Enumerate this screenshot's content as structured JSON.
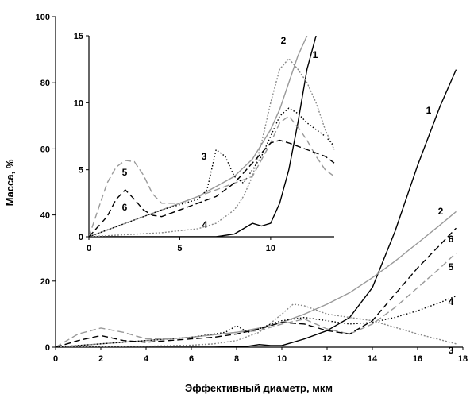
{
  "chart_data": [
    {
      "type": "line",
      "xlabel": "Эффективный диаметр, мкм",
      "ylabel": "Масса, %",
      "xlim": [
        0,
        18
      ],
      "ylim": [
        0,
        100
      ],
      "x_ticks": [
        "0",
        "2",
        "4",
        "6",
        "8",
        "10",
        "12",
        "14",
        "16",
        "18"
      ],
      "y_ticks": [
        "0",
        "20",
        "40",
        "60",
        "80",
        "100"
      ],
      "series": [
        {
          "name": "1",
          "color": "#000000",
          "dash": "solid",
          "x": [
            0,
            7,
            8.5,
            9,
            9.5,
            10,
            10.5,
            11,
            12,
            13,
            14,
            15,
            16,
            17,
            17.7
          ],
          "y": [
            0,
            0,
            0.3,
            0.8,
            0.5,
            0.5,
            1.5,
            2.5,
            5,
            9,
            18,
            35,
            55,
            73,
            84
          ]
        },
        {
          "name": "2",
          "color": "#999999",
          "dash": "solid",
          "x": [
            0,
            2,
            4,
            6,
            8,
            9,
            10,
            11,
            12,
            13,
            14,
            15,
            16,
            17,
            17.7
          ],
          "y": [
            0,
            1,
            2,
            3,
            4.5,
            5.8,
            7.5,
            10,
            13,
            16.5,
            21,
            26,
            31.5,
            37,
            41
          ]
        },
        {
          "name": "3",
          "color": "#888888",
          "dash": "2,2",
          "x": [
            0,
            4,
            6,
            7,
            8,
            9,
            10,
            10.5,
            11,
            12,
            13,
            14,
            15,
            16,
            17.7
          ],
          "y": [
            0,
            0.3,
            0.6,
            1,
            2,
            4.5,
            10,
            13,
            12.5,
            10,
            9,
            8,
            6,
            4,
            1
          ]
        },
        {
          "name": "4",
          "color": "#000000",
          "dash": "1.5,2.5",
          "x": [
            0,
            2,
            4,
            6,
            7.5,
            8,
            8.5,
            9,
            9.5,
            10,
            11,
            12,
            13,
            14,
            15,
            16,
            17,
            17.7
          ],
          "y": [
            0,
            1,
            2,
            3,
            4.5,
            6.5,
            4.5,
            5.5,
            7,
            8,
            9,
            8,
            7,
            7.5,
            9,
            11,
            13.5,
            15.5
          ]
        },
        {
          "name": "5",
          "color": "#999999",
          "dash": "8,4",
          "x": [
            0,
            1,
            2,
            3,
            4,
            5,
            6,
            7,
            8,
            9,
            10,
            11,
            12,
            13,
            14,
            15,
            16,
            17,
            17.7
          ],
          "y": [
            0,
            4,
            5.8,
            4.5,
            2.5,
            2.5,
            3,
            3.8,
            4.5,
            5,
            7,
            8.5,
            5.5,
            4,
            7,
            12,
            18,
            24,
            28.5
          ]
        },
        {
          "name": "6",
          "color": "#000000",
          "dash": "8,4",
          "x": [
            0,
            1,
            2,
            3,
            4,
            5,
            6,
            7,
            8,
            9,
            10,
            11,
            12,
            13,
            14,
            15,
            16,
            17,
            17.7
          ],
          "y": [
            0,
            2,
            3.5,
            2,
            1.5,
            2,
            2.5,
            3,
            4,
            5.5,
            7.5,
            7,
            5,
            4,
            8,
            16,
            24,
            31,
            36
          ]
        }
      ]
    },
    {
      "type": "line",
      "inset": true,
      "xlim": [
        0,
        13.5
      ],
      "ylim": [
        0,
        15
      ],
      "x_ticks": [
        "0",
        "5",
        "10"
      ],
      "y_ticks": [
        "0",
        "5",
        "10",
        "15"
      ],
      "series": [
        {
          "name": "1",
          "color": "#000000",
          "dash": "solid",
          "x": [
            0,
            7,
            8,
            8.5,
            9,
            9.5,
            10,
            10.5,
            11,
            11.5,
            12,
            12.5
          ],
          "y": [
            0,
            0,
            0.2,
            0.6,
            1,
            0.8,
            1,
            2.5,
            5,
            8.5,
            12.5,
            15
          ]
        },
        {
          "name": "2",
          "color": "#999999",
          "dash": "solid",
          "x": [
            0,
            2,
            4,
            6,
            8,
            9,
            10,
            10.5,
            11,
            11.5,
            12
          ],
          "y": [
            0,
            1,
            2,
            3,
            4.5,
            5.8,
            8,
            9.5,
            11.5,
            13.5,
            15
          ]
        },
        {
          "name": "3",
          "color": "#888888",
          "dash": "2,2",
          "x": [
            0,
            4,
            6,
            7,
            8,
            8.5,
            9,
            9.5,
            10,
            10.5,
            11,
            11.5,
            12,
            12.5,
            13,
            13.5
          ],
          "y": [
            0,
            0.3,
            0.6,
            1,
            2,
            3,
            4.5,
            7,
            10,
            12.5,
            13.3,
            12.5,
            11.5,
            10,
            8,
            6.5
          ]
        },
        {
          "name": "4",
          "color": "#000000",
          "dash": "1.5,2.5",
          "x": [
            0,
            2,
            4,
            6,
            6.5,
            7,
            7.5,
            8,
            8.5,
            9,
            9.5,
            10,
            10.5,
            11,
            11.5,
            12,
            12.5,
            13,
            13.5
          ],
          "y": [
            0,
            1,
            2,
            2.8,
            3.5,
            6.5,
            6,
            4.5,
            4,
            5,
            6,
            7.5,
            9,
            9.6,
            9.2,
            8.5,
            8,
            7.5,
            6.8
          ]
        },
        {
          "name": "5",
          "color": "#999999",
          "dash": "8,4",
          "x": [
            0,
            0.5,
            1,
            1.5,
            2,
            2.5,
            3,
            3.5,
            4,
            5,
            6,
            7,
            8,
            9,
            10,
            10.5,
            11,
            11.5,
            12,
            12.5,
            13,
            13.5
          ],
          "y": [
            0,
            2,
            4,
            5.2,
            5.7,
            5.6,
            4.6,
            3.2,
            2.5,
            2.5,
            3,
            3.5,
            4,
            4.5,
            7,
            8.5,
            9,
            8.2,
            7.2,
            6,
            5,
            4.5
          ]
        },
        {
          "name": "6",
          "color": "#000000",
          "dash": "8,4",
          "x": [
            0,
            1,
            1.5,
            2,
            2.5,
            3,
            3.5,
            4,
            5,
            6,
            7,
            8,
            9,
            10,
            10.5,
            11,
            12,
            13,
            13.5
          ],
          "y": [
            0,
            1.5,
            2.8,
            3.5,
            2.8,
            2,
            1.6,
            1.5,
            2,
            2.5,
            3,
            4,
            5.5,
            7,
            7.2,
            7,
            6.5,
            6,
            5.5
          ]
        }
      ]
    }
  ]
}
